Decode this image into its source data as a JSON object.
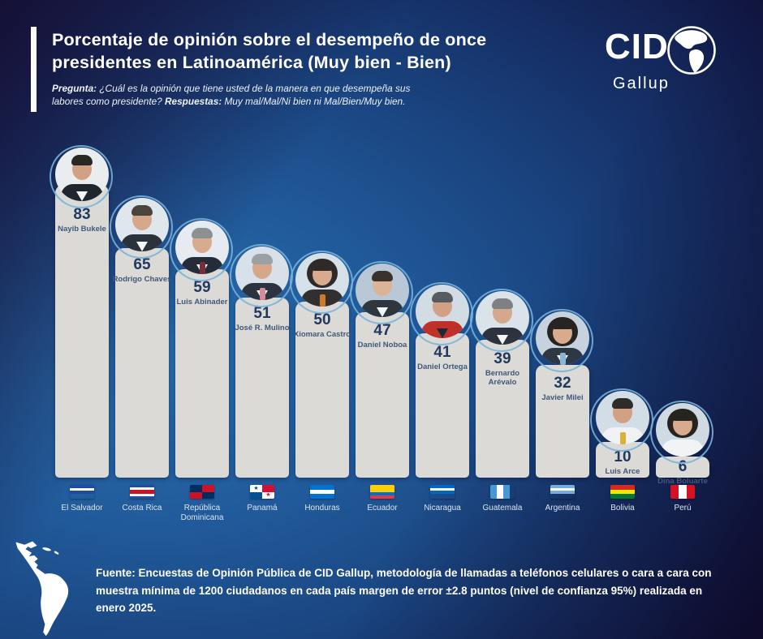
{
  "header": {
    "title": "Porcentaje de opinión sobre el desempeño de once presidentes en Latinoamérica (Muy bien - Bien)",
    "question": {
      "label": "Pregunta:",
      "text": " ¿Cuál es la opinión que tiene usted de la manera en que desempeña sus labores como presidente? ",
      "answers_label": "Respuestas:",
      "answers_text": " Muy mal/Mal/Ni bien ni Mal/Bien/Muy bien."
    },
    "logo": {
      "name": "CID",
      "sub": "Gallup",
      "icon": "globe-americas"
    }
  },
  "colors": {
    "bar_fill": "#dcdad6",
    "value_text": "#21395e",
    "name_text": "#40587a",
    "country_text": "#dbe5f1",
    "photo_ring": "#76b2dc",
    "accent_bar": "#fdfdfd"
  },
  "chart_data": {
    "type": "bar",
    "title": "Porcentaje de opinión sobre el desempeño de once presidentes en Latinoamérica (Muy bien - Bien)",
    "ylim": [
      0,
      100
    ],
    "unit": "percent (Muy bien - Bien)",
    "categories": [
      "El Salvador",
      "Costa Rica",
      "República Dominicana",
      "Panamá",
      "Honduras",
      "Ecuador",
      "Nicaragua",
      "Guatemala",
      "Argentina",
      "Bolivia",
      "Perú"
    ],
    "values": [
      83,
      65,
      59,
      51,
      50,
      47,
      41,
      39,
      32,
      10,
      6
    ],
    "bars": [
      {
        "president": "Nayib Bukele",
        "country": "El Salvador",
        "value": 83,
        "flag": {
          "kind": "h",
          "stripes": [
            "#1e4ca1",
            "#ffffff",
            "#1e4ca1"
          ],
          "emblem": "#dfb23c"
        },
        "photo": {
          "bg": "#e9edf0",
          "skin": "#d2a184",
          "hair": "#2b2723",
          "suit": "#20262e",
          "shirt": "#f4f5f6"
        }
      },
      {
        "president": "Rodrigo Chaves",
        "country": "Costa Rica",
        "value": 65,
        "flag": {
          "kind": "h",
          "stripes": [
            "#1e4ca1",
            "#ffffff",
            "#ce1126",
            "#ce1126",
            "#ffffff",
            "#1e4ca1"
          ]
        },
        "photo": {
          "bg": "#dfe6ec",
          "skin": "#d6a88b",
          "hair": "#4a443c",
          "suit": "#2a323c",
          "shirt": "#f4f5f6"
        }
      },
      {
        "president": "Luis Abinader",
        "country": "República Dominicana",
        "value": 59,
        "flag": {
          "kind": "quad",
          "colors": [
            "#002d62",
            "#ce1126",
            "#ce1126",
            "#002d62"
          ],
          "cross": "#ffffff"
        },
        "photo": {
          "bg": "#e6ebf1",
          "skin": "#d8ab8e",
          "hair": "#8d9093",
          "suit": "#252c38",
          "shirt": "#f4f5f6",
          "accent": "#7a2d3a"
        }
      },
      {
        "president": "José R. Mulino",
        "country": "Panamá",
        "value": 51,
        "flag": {
          "kind": "quad",
          "colors": [
            "#ffffff",
            "#d21034",
            "#005293",
            "#ffffff"
          ],
          "stars": [
            "#005293",
            "#d21034"
          ]
        },
        "photo": {
          "bg": "#d8e1e9",
          "skin": "#d6a88b",
          "hair": "#9aa0a4",
          "suit": "#2b3240",
          "shirt": "#f4f5f6",
          "accent": "#d88a9a"
        }
      },
      {
        "president": "Xiomara Castro",
        "country": "Honduras",
        "value": 50,
        "flag": {
          "kind": "h",
          "stripes": [
            "#0073cf",
            "#ffffff",
            "#0073cf"
          ]
        },
        "photo": {
          "bg": "#d6e0e8",
          "skin": "#d8ab8e",
          "hair": "#2e2a28",
          "suit": "#32302f",
          "shirt": "none",
          "accent": "#d07a28",
          "long_hair": true
        }
      },
      {
        "president": "Daniel Noboa",
        "country": "Ecuador",
        "value": 47,
        "flag": {
          "kind": "h",
          "stripes": [
            "#ffd100",
            "#ffd100",
            "#0072ce",
            "#ef3340"
          ]
        },
        "photo": {
          "bg": "#b9c8d6",
          "skin": "#dcb394",
          "hair": "#3a332c",
          "suit": "#2e3640",
          "shirt": "#f4f5f6"
        }
      },
      {
        "president": "Daniel Ortega",
        "country": "Nicaragua",
        "value": 41,
        "flag": {
          "kind": "h",
          "stripes": [
            "#0067c6",
            "#ffffff",
            "#0067c6"
          ],
          "emblem": "#7ec3e8"
        },
        "photo": {
          "bg": "#d3dce4",
          "skin": "#d2a184",
          "hair": "#565b5f",
          "suit": "#c13028",
          "shirt": "#1a2a3a"
        }
      },
      {
        "president": "Bernardo Arévalo",
        "country": "Guatemala",
        "value": 39,
        "flag": {
          "kind": "v",
          "stripes": [
            "#4997d0",
            "#ffffff",
            "#4997d0"
          ],
          "emblem": "#b9c7b0"
        },
        "photo": {
          "bg": "#dae2ea",
          "skin": "#d6a88b",
          "hair": "#7d8184",
          "suit": "#2c333e",
          "shirt": "#f4f5f6"
        }
      },
      {
        "president": "Javier Milei",
        "country": "Argentina",
        "value": 32,
        "flag": {
          "kind": "h",
          "stripes": [
            "#74acdf",
            "#ffffff",
            "#74acdf"
          ],
          "emblem": "#f6b40e"
        },
        "photo": {
          "bg": "#c6d3de",
          "skin": "#d8ab8e",
          "hair": "#272422",
          "suit": "#2e3744",
          "shirt": "#f4f5f6",
          "accent": "#8ab4d8",
          "long_hair": true
        }
      },
      {
        "president": "Luis Arce",
        "country": "Bolivia",
        "value": 10,
        "flag": {
          "kind": "h",
          "stripes": [
            "#d52b1e",
            "#f9e300",
            "#007934"
          ]
        },
        "photo": {
          "bg": "#d2dde5",
          "skin": "#d2a184",
          "hair": "#2e2b29",
          "suit": "#f0f2f4",
          "shirt": "none",
          "accent": "#d8b23a"
        }
      },
      {
        "president": "Dina Boluarte",
        "country": "Perú",
        "value": 6,
        "flag": {
          "kind": "v",
          "stripes": [
            "#d91023",
            "#ffffff",
            "#d91023"
          ]
        },
        "photo": {
          "bg": "#cfdae3",
          "skin": "#d8ab8e",
          "hair": "#27231f",
          "suit": "#f2f3f5",
          "shirt": "none",
          "long_hair": true
        }
      }
    ]
  },
  "footer": {
    "source": "Fuente: Encuestas de Opinión Pública de CID Gallup, metodología de llamadas a teléfonos celulares o cara a cara con muestra mínima de 1200 ciudadanos en cada país margen de error ±2.8 puntos (nivel de confianza 95%) realizada en enero 2025."
  }
}
